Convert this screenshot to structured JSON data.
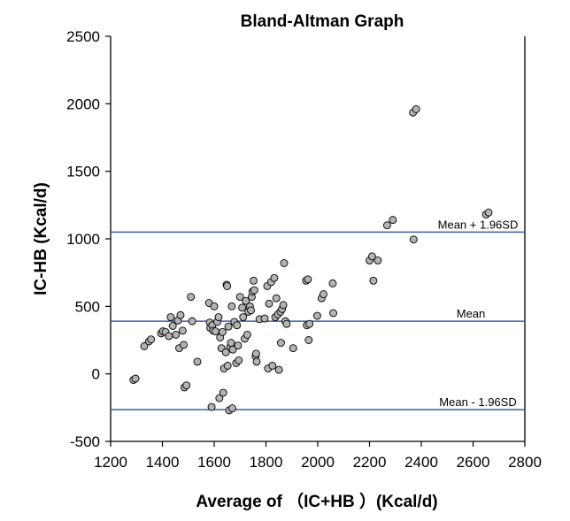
{
  "chart_data": {
    "type": "scatter",
    "title": "Bland-Altman Graph",
    "xlabel": "Average of （IC+HB ）(Kcal/d)",
    "ylabel": "IC-HB (Kcal/d)",
    "xlim": [
      1200,
      2800
    ],
    "ylim": [
      -500,
      2500
    ],
    "xticks": [
      1200,
      1400,
      1600,
      1800,
      2000,
      2200,
      2400,
      2600,
      2800
    ],
    "yticks": [
      -500,
      0,
      500,
      1000,
      1500,
      2000,
      2500
    ],
    "grid": false,
    "colors": {
      "marker_fill": "#b3b3b3",
      "marker_stroke": "#000000",
      "reference_line": "#3a5fa8"
    },
    "reference_lines": [
      {
        "label": "Mean + 1.96SD",
        "y": 1050
      },
      {
        "label": "Mean",
        "y": 390
      },
      {
        "label": "Mean - 1.96SD",
        "y": -265
      }
    ],
    "points": [
      {
        "x": 1288,
        "y": -45
      },
      {
        "x": 1296,
        "y": -35
      },
      {
        "x": 1330,
        "y": 205
      },
      {
        "x": 1348,
        "y": 240
      },
      {
        "x": 1356,
        "y": 255
      },
      {
        "x": 1395,
        "y": 300
      },
      {
        "x": 1402,
        "y": 315
      },
      {
        "x": 1412,
        "y": 310
      },
      {
        "x": 1425,
        "y": 280
      },
      {
        "x": 1432,
        "y": 420
      },
      {
        "x": 1440,
        "y": 355
      },
      {
        "x": 1452,
        "y": 290
      },
      {
        "x": 1460,
        "y": 395
      },
      {
        "x": 1465,
        "y": 190
      },
      {
        "x": 1470,
        "y": 435
      },
      {
        "x": 1478,
        "y": 320
      },
      {
        "x": 1482,
        "y": 215
      },
      {
        "x": 1485,
        "y": -100
      },
      {
        "x": 1493,
        "y": -85
      },
      {
        "x": 1510,
        "y": 570
      },
      {
        "x": 1515,
        "y": 390
      },
      {
        "x": 1535,
        "y": 90
      },
      {
        "x": 1580,
        "y": 525
      },
      {
        "x": 1583,
        "y": 380
      },
      {
        "x": 1585,
        "y": 340
      },
      {
        "x": 1590,
        "y": -245
      },
      {
        "x": 1593,
        "y": 360
      },
      {
        "x": 1596,
        "y": 320
      },
      {
        "x": 1600,
        "y": 500
      },
      {
        "x": 1605,
        "y": 315
      },
      {
        "x": 1612,
        "y": 385
      },
      {
        "x": 1617,
        "y": 420
      },
      {
        "x": 1620,
        "y": -180
      },
      {
        "x": 1623,
        "y": 270
      },
      {
        "x": 1628,
        "y": 190
      },
      {
        "x": 1632,
        "y": 310
      },
      {
        "x": 1635,
        "y": -140
      },
      {
        "x": 1638,
        "y": 40
      },
      {
        "x": 1645,
        "y": 160
      },
      {
        "x": 1648,
        "y": 660
      },
      {
        "x": 1650,
        "y": 650
      },
      {
        "x": 1652,
        "y": 60
      },
      {
        "x": 1655,
        "y": 350
      },
      {
        "x": 1658,
        "y": -270
      },
      {
        "x": 1662,
        "y": 200
      },
      {
        "x": 1665,
        "y": 230
      },
      {
        "x": 1668,
        "y": 500
      },
      {
        "x": 1670,
        "y": -255
      },
      {
        "x": 1672,
        "y": 180
      },
      {
        "x": 1678,
        "y": 385
      },
      {
        "x": 1685,
        "y": 80
      },
      {
        "x": 1688,
        "y": 360
      },
      {
        "x": 1692,
        "y": 210
      },
      {
        "x": 1695,
        "y": 100
      },
      {
        "x": 1700,
        "y": 570
      },
      {
        "x": 1708,
        "y": 490
      },
      {
        "x": 1712,
        "y": 420
      },
      {
        "x": 1718,
        "y": 260
      },
      {
        "x": 1722,
        "y": 540
      },
      {
        "x": 1728,
        "y": 290
      },
      {
        "x": 1732,
        "y": 460
      },
      {
        "x": 1738,
        "y": 500
      },
      {
        "x": 1742,
        "y": 470
      },
      {
        "x": 1745,
        "y": 570
      },
      {
        "x": 1748,
        "y": 610
      },
      {
        "x": 1752,
        "y": 690
      },
      {
        "x": 1755,
        "y": 620
      },
      {
        "x": 1760,
        "y": 130
      },
      {
        "x": 1762,
        "y": 150
      },
      {
        "x": 1764,
        "y": 90
      },
      {
        "x": 1775,
        "y": 405
      },
      {
        "x": 1795,
        "y": 410
      },
      {
        "x": 1805,
        "y": 650
      },
      {
        "x": 1808,
        "y": 40
      },
      {
        "x": 1812,
        "y": 520
      },
      {
        "x": 1820,
        "y": 680
      },
      {
        "x": 1825,
        "y": 60
      },
      {
        "x": 1832,
        "y": 710
      },
      {
        "x": 1836,
        "y": 420
      },
      {
        "x": 1840,
        "y": 560
      },
      {
        "x": 1846,
        "y": 440
      },
      {
        "x": 1850,
        "y": 30
      },
      {
        "x": 1856,
        "y": 460
      },
      {
        "x": 1858,
        "y": 230
      },
      {
        "x": 1862,
        "y": 480
      },
      {
        "x": 1867,
        "y": 510
      },
      {
        "x": 1870,
        "y": 820
      },
      {
        "x": 1875,
        "y": 390
      },
      {
        "x": 1880,
        "y": 370
      },
      {
        "x": 1905,
        "y": 190
      },
      {
        "x": 1955,
        "y": 690
      },
      {
        "x": 1958,
        "y": 360
      },
      {
        "x": 1962,
        "y": 700
      },
      {
        "x": 1965,
        "y": 250
      },
      {
        "x": 1968,
        "y": 370
      },
      {
        "x": 1998,
        "y": 430
      },
      {
        "x": 2015,
        "y": 560
      },
      {
        "x": 2022,
        "y": 590
      },
      {
        "x": 2058,
        "y": 670
      },
      {
        "x": 2060,
        "y": 450
      },
      {
        "x": 2200,
        "y": 840
      },
      {
        "x": 2210,
        "y": 870
      },
      {
        "x": 2215,
        "y": 690
      },
      {
        "x": 2232,
        "y": 840
      },
      {
        "x": 2268,
        "y": 1100
      },
      {
        "x": 2290,
        "y": 1140
      },
      {
        "x": 2368,
        "y": 1935
      },
      {
        "x": 2370,
        "y": 995
      },
      {
        "x": 2380,
        "y": 1960
      },
      {
        "x": 2650,
        "y": 1180
      },
      {
        "x": 2660,
        "y": 1195
      }
    ]
  }
}
